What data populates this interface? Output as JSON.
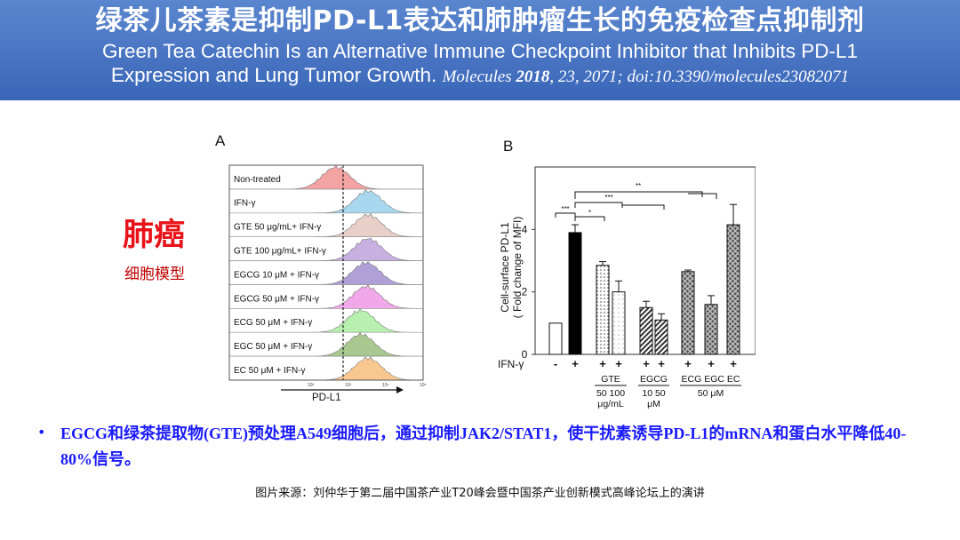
{
  "header": {
    "title_cn": "绿茶儿茶素是抑制PD-L1表达和肺肿瘤生长的免疫检查点抑制剂",
    "title_en_line1": "Green Tea Catechin Is an Alternative Immune Checkpoint Inhibitor that Inhibits PD-L1",
    "title_en_line2": "Expression and Lung Tumor Growth.",
    "citation_journal": "Molecules",
    "citation_year": "2018",
    "citation_rest": ", 23, 2071; doi:10.3390/molecules23082071"
  },
  "side_label": {
    "main": "肺癌",
    "sub": "细胞模型"
  },
  "panel_a": {
    "letter": "A",
    "xlabel": "PD-L1",
    "rows": [
      {
        "label": "Non-treated",
        "color": "#f4a3a3"
      },
      {
        "label": "IFN-γ",
        "color": "#a8d8f0"
      },
      {
        "label": "GTE 50 μg/mL+ IFN-γ",
        "color": "#e8cfc8"
      },
      {
        "label": "GTE 100 μg/mL+ IFN-γ",
        "color": "#c8b0e0"
      },
      {
        "label": "EGCG 10 μM + IFN-γ",
        "color": "#b0a0d8"
      },
      {
        "label": "EGCG 50 μM + IFN-γ",
        "color": "#f0a8e8"
      },
      {
        "label": "ECG 50 μM + IFN-γ",
        "color": "#b8f0b0"
      },
      {
        "label": "EGC 50 μM + IFN-γ",
        "color": "#a8c890"
      },
      {
        "label": "EC 50 μM + IFN-γ",
        "color": "#f8c890"
      }
    ],
    "tick_labels": [
      "10²",
      "10³",
      "10⁴",
      "10⁵"
    ]
  },
  "chart_data": {
    "type": "bar",
    "title": "B",
    "ylabel": "Cell-surface PD-L1",
    "ylabel2": "( Fold change of MFI)",
    "ylim": [
      0,
      6
    ],
    "yticks": [
      0,
      2,
      4
    ],
    "row_label": "IFN-γ",
    "ifn": [
      "-",
      "+",
      "+",
      "+",
      "+",
      "+",
      "+",
      "+",
      "+"
    ],
    "values": [
      1.0,
      3.9,
      2.85,
      2.0,
      1.5,
      1.1,
      2.65,
      1.6,
      4.15
    ],
    "errors": [
      0.0,
      0.25,
      0.12,
      0.35,
      0.2,
      0.2,
      0.05,
      0.28,
      0.65
    ],
    "patterns": [
      "white",
      "black",
      "dots",
      "light",
      "hatch",
      "hatch",
      "cross",
      "cross",
      "cross"
    ],
    "groups": [
      {
        "name": "GTE",
        "sub": "50 100",
        "unit": "μg/mL"
      },
      {
        "name": "EGCG",
        "sub": "10  50",
        "unit": "μM"
      },
      {
        "name": "ECG EGC EC",
        "sub": "50 μM",
        "unit": ""
      }
    ],
    "significance": [
      "***",
      "*",
      "***",
      "**"
    ]
  },
  "bullet": "EGCG和绿茶提取物(GTE)预处理A549细胞后，通过抑制JAK2/STAT1，使干扰素诱导PD-L1的mRNA和蛋白水平降低40-80%信号。",
  "source": "图片来源：刘仲华于第二届中国茶产业T20峰会暨中国茶产业创新模式高峰论坛上的演讲"
}
